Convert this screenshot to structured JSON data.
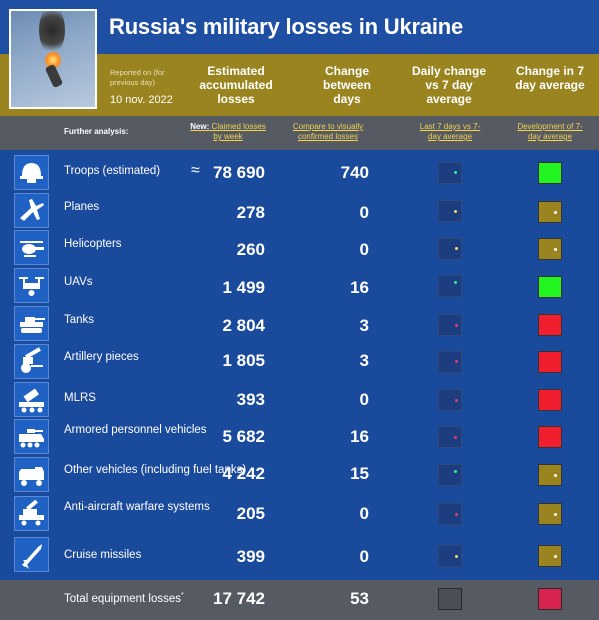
{
  "header": {
    "title": "Russia's military losses in Ukraine",
    "reported_on": "Reported on (for previous day)",
    "date": "10 nov. 2022"
  },
  "columns": {
    "estimated": "Estimated accumulated losses",
    "change": "Change between days",
    "daily": "Daily change vs 7 day average",
    "change7": "Change in 7 day average"
  },
  "subheader": {
    "further": "Further analysis:",
    "new_label": "New:",
    "claimed_link": "Claimed losses by week",
    "compare_link": "Compare to visually confirmed losses",
    "last7_link": "Last 7 days vs 7-day average",
    "development_link": "Development of 7-day average"
  },
  "colors": {
    "green": "#22f51f",
    "olive": "#9a8420",
    "red": "#f01e2e",
    "crimson": "#d8234e"
  },
  "rows": [
    {
      "label": "Troops (estimated)",
      "approx": "≈",
      "value": "78 690",
      "change": "740",
      "indicator": "#22f51f",
      "icon": "helmet-icon",
      "dot": "#2ee8a0"
    },
    {
      "label": "Planes",
      "value": "278",
      "change": "0",
      "indicator": "#9a8420",
      "icon": "plane-icon",
      "dot": "#e8e070"
    },
    {
      "label": "Helicopters",
      "value": "260",
      "change": "0",
      "indicator": "#9a8420",
      "icon": "helicopter-icon",
      "dot": "#e8e070"
    },
    {
      "label": "UAVs",
      "value": "1 499",
      "change": "16",
      "indicator": "#22f51f",
      "icon": "drone-icon",
      "dot": "#2ee8a0"
    },
    {
      "label": "Tanks",
      "value": "2 804",
      "change": "3",
      "indicator": "#f01e2e",
      "icon": "tank-icon",
      "dot": "#e03a7a"
    },
    {
      "label": "Artillery pieces",
      "value": "1 805",
      "change": "3",
      "indicator": "#f01e2e",
      "icon": "artillery-icon",
      "dot": "#e03a7a"
    },
    {
      "label": "MLRS",
      "value": "393",
      "change": "0",
      "indicator": "#f01e2e",
      "icon": "rocket-launcher-icon",
      "dot": "#e03a7a"
    },
    {
      "label": "Armored personnel vehicles",
      "value": "5 682",
      "change": "16",
      "indicator": "#f01e2e",
      "icon": "apc-icon",
      "dot": "#e03a7a"
    },
    {
      "label": "Other vehicles (including fuel tanks)",
      "value": "4 242",
      "change": "15",
      "indicator": "#9a8420",
      "icon": "truck-icon",
      "dot": "#2ee8a0"
    },
    {
      "label": "Anti-aircraft warfare systems",
      "value": "205",
      "change": "0",
      "indicator": "#9a8420",
      "icon": "anti-aircraft-icon",
      "dot": "#e03a7a"
    },
    {
      "label": "Cruise missiles",
      "value": "399",
      "change": "0",
      "indicator": "#9a8420",
      "icon": "missile-icon",
      "dot": "#e8e070"
    }
  ],
  "total": {
    "label": "Total equipment losses",
    "mark": "*",
    "value": "17 742",
    "change": "53"
  }
}
